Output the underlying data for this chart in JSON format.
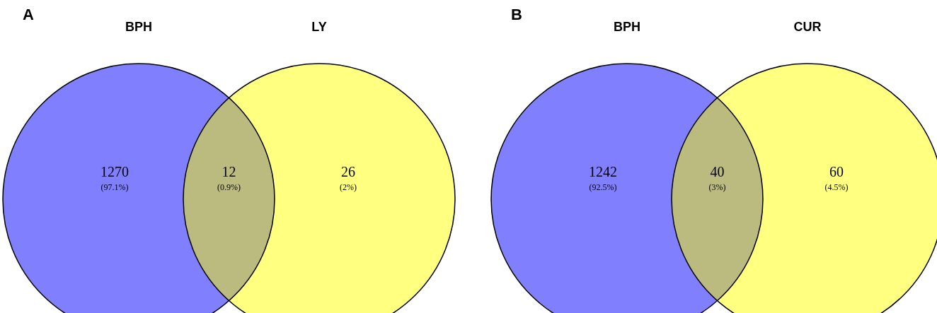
{
  "chart_data": [
    {
      "type": "other",
      "title": "A",
      "categories": [
        "BPH",
        null,
        "LY"
      ],
      "values": [
        1270,
        12,
        26
      ],
      "data_labels": true,
      "annotations": [
        "(97.1%)",
        "(0.9%)",
        "(2%)"
      ],
      "colors": [
        "#8080ff",
        "#bbbb80",
        "#ffff80"
      ]
    },
    {
      "type": "other",
      "title": "B",
      "categories": [
        "BPH",
        null,
        "CUR"
      ],
      "values": [
        1242,
        40,
        60
      ],
      "data_labels": true,
      "annotations": [
        "(92.5%)",
        "(3%)",
        "(4.5%)"
      ],
      "colors": [
        "#8080ff",
        "#bbbb80",
        "#ffff80"
      ]
    }
  ]
}
